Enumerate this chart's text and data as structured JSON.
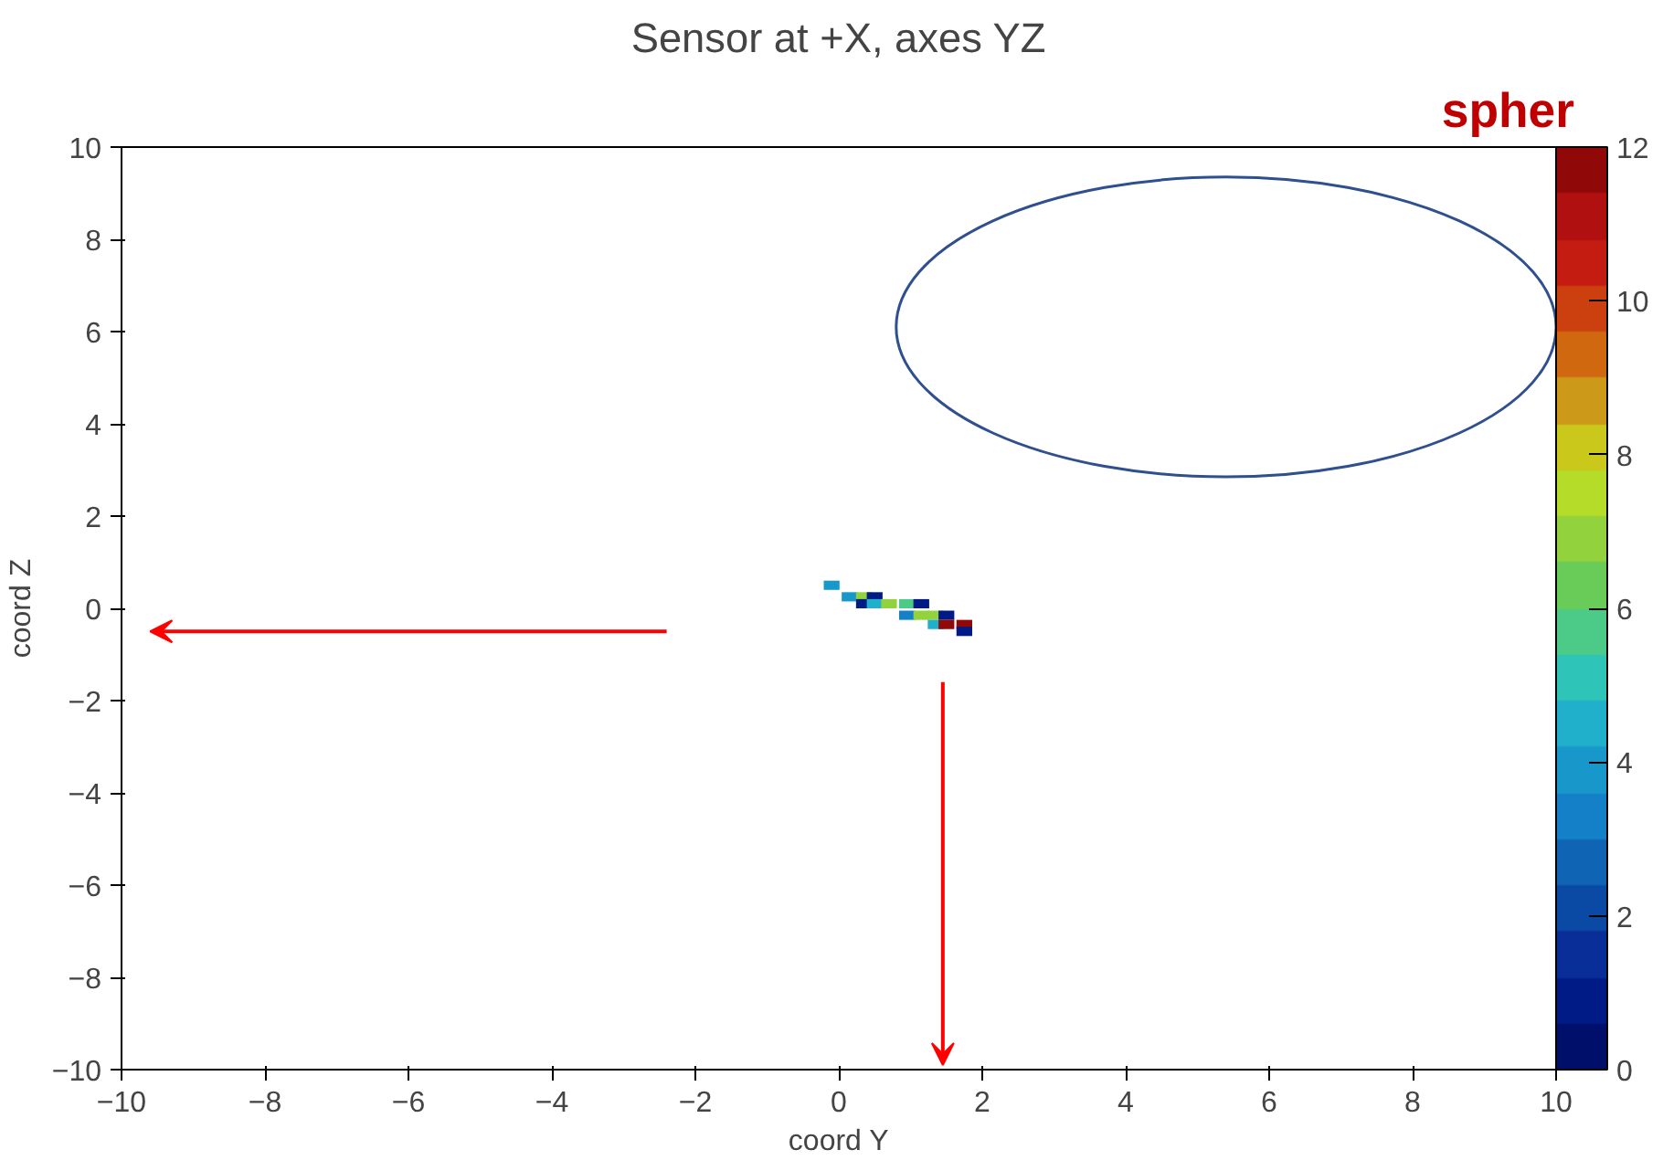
{
  "chart_data": {
    "type": "scatter",
    "title": "Sensor at +X, axes YZ",
    "xlabel": "coord Y",
    "ylabel": "coord Z",
    "marker": "square",
    "x": [
      -0.1,
      0.15,
      0.35,
      0.5,
      0.35,
      0.5,
      0.7,
      0.95,
      1.15,
      0.95,
      1.15,
      1.35,
      1.5,
      1.35,
      1.5,
      1.75,
      1.75
    ],
    "values": [
      0.5,
      0.25,
      0.25,
      0.25,
      0.1,
      0.1,
      0.1,
      0.1,
      0.1,
      -0.15,
      -0.15,
      -0.15,
      -0.15,
      -0.35,
      -0.35,
      -0.35,
      -0.5
    ],
    "cvalues": [
      4,
      4,
      7,
      1,
      1,
      4.5,
      7,
      5.5,
      1,
      3.5,
      7,
      7,
      1,
      4.5,
      11.5,
      11.5,
      1
    ],
    "xlim": [
      -10,
      10
    ],
    "ylim": [
      -10,
      10
    ],
    "xticks": [
      -10,
      -8,
      -6,
      -4,
      -2,
      0,
      2,
      4,
      6,
      8,
      10
    ],
    "yticks": [
      -10,
      -8,
      -6,
      -4,
      -2,
      0,
      2,
      4,
      6,
      8,
      10
    ],
    "clim": [
      0,
      12
    ],
    "cticks": [
      0,
      2,
      4,
      6,
      8,
      10,
      12
    ],
    "grid": false,
    "annotations": [
      "spher"
    ]
  }
}
